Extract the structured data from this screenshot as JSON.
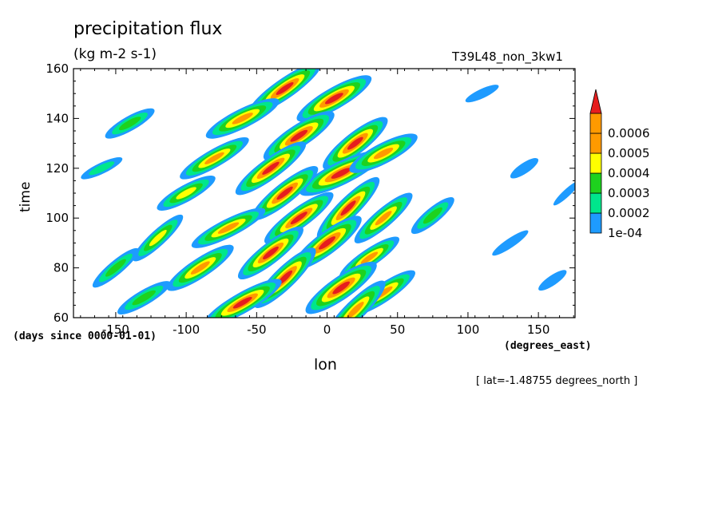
{
  "chart_data": {
    "type": "heatmap",
    "title": "precipitation flux",
    "units": "(kg m-2 s-1)",
    "run_label": "T39L48_non_3kw1",
    "xlabel": "lon",
    "ylabel": "time",
    "x_units": "(degrees_east)",
    "y_units": "(days since 0000-01-01)",
    "slice_note": "[ lat=-1.48755 degrees_north ]",
    "xlim": [
      -180,
      176
    ],
    "ylim": [
      60,
      160
    ],
    "x_ticks": [
      -150,
      -100,
      -50,
      0,
      50,
      100,
      150
    ],
    "y_ticks": [
      60,
      80,
      100,
      120,
      140,
      160
    ],
    "x_tick_labels": [
      "-150",
      "-100",
      "-50",
      "0",
      "50",
      "100",
      "150"
    ],
    "y_tick_labels": [
      "60",
      "80",
      "100",
      "120",
      "140",
      "160"
    ],
    "colorbar": {
      "levels": [
        0.0001,
        0.0002,
        0.0003,
        0.0004,
        0.0005,
        0.0006
      ],
      "labels": [
        "1e-04",
        "0.0002",
        "0.0003",
        "0.0004",
        "0.0005",
        "0.0006"
      ],
      "colors": [
        "#1e9bff",
        "#00e68c",
        "#1ed21e",
        "#ffff00",
        "#ff9a00",
        "#e61e1e"
      ],
      "extend": "max"
    },
    "features": [
      {
        "lon": -30,
        "time": 152,
        "level": 6
      },
      {
        "lon": 5,
        "time": 148,
        "level": 6
      },
      {
        "lon": -60,
        "time": 140,
        "level": 5
      },
      {
        "lon": -20,
        "time": 133,
        "level": 6
      },
      {
        "lon": 20,
        "time": 130,
        "level": 6
      },
      {
        "lon": -80,
        "time": 124,
        "level": 5
      },
      {
        "lon": -40,
        "time": 120,
        "level": 6
      },
      {
        "lon": 10,
        "time": 118,
        "level": 6
      },
      {
        "lon": 40,
        "time": 126,
        "level": 5
      },
      {
        "lon": -100,
        "time": 110,
        "level": 4
      },
      {
        "lon": -30,
        "time": 110,
        "level": 6
      },
      {
        "lon": 15,
        "time": 104,
        "level": 6
      },
      {
        "lon": -20,
        "time": 100,
        "level": 6
      },
      {
        "lon": 40,
        "time": 100,
        "level": 5
      },
      {
        "lon": -70,
        "time": 96,
        "level": 5
      },
      {
        "lon": -120,
        "time": 92,
        "level": 4
      },
      {
        "lon": 0,
        "time": 90,
        "level": 6
      },
      {
        "lon": -40,
        "time": 86,
        "level": 6
      },
      {
        "lon": 30,
        "time": 84,
        "level": 5
      },
      {
        "lon": -90,
        "time": 80,
        "level": 5
      },
      {
        "lon": -30,
        "time": 76,
        "level": 6
      },
      {
        "lon": 10,
        "time": 72,
        "level": 6
      },
      {
        "lon": 40,
        "time": 70,
        "level": 5
      },
      {
        "lon": -60,
        "time": 66,
        "level": 6
      },
      {
        "lon": -130,
        "time": 68,
        "level": 3
      },
      {
        "lon": 20,
        "time": 63,
        "level": 5
      },
      {
        "lon": -150,
        "time": 80,
        "level": 3
      },
      {
        "lon": -160,
        "time": 120,
        "level": 2
      },
      {
        "lon": -140,
        "time": 138,
        "level": 3
      },
      {
        "lon": 75,
        "time": 101,
        "level": 3
      },
      {
        "lon": 110,
        "time": 150,
        "level": 1
      },
      {
        "lon": 140,
        "time": 120,
        "level": 1
      },
      {
        "lon": 130,
        "time": 90,
        "level": 1
      },
      {
        "lon": 160,
        "time": 75,
        "level": 1
      },
      {
        "lon": 170,
        "time": 110,
        "level": 1
      }
    ]
  }
}
